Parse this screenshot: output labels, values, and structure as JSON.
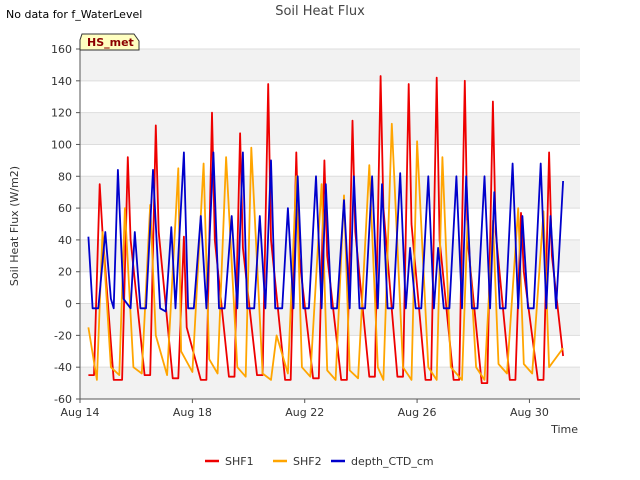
{
  "header": {
    "no_data_note": "No data for f_WaterLevel"
  },
  "site_badge": {
    "label": "HS_met",
    "bg": "#ffffc0",
    "text_color": "#8b0000"
  },
  "chart_data": {
    "type": "line",
    "title": "Soil Heat Flux",
    "xlabel": "Time",
    "ylabel": "Soil Heat Flux (W/m2)",
    "xlim": [
      14,
      31.8
    ],
    "ylim": [
      -60,
      160
    ],
    "yticks": [
      -60,
      -40,
      -20,
      0,
      20,
      40,
      60,
      80,
      100,
      120,
      140,
      160
    ],
    "xticks": [
      {
        "day": 14,
        "label": "Aug 14"
      },
      {
        "day": 18,
        "label": "Aug 18"
      },
      {
        "day": 22,
        "label": "Aug 22"
      },
      {
        "day": 26,
        "label": "Aug 26"
      },
      {
        "day": 30,
        "label": "Aug 30"
      }
    ],
    "legend_position": "bottom-center",
    "series": [
      {
        "name": "SHF1",
        "color": "#ee0000",
        "x": [
          14.3,
          14.5,
          14.7,
          14.8,
          15.2,
          15.5,
          15.7,
          15.8,
          16.3,
          16.5,
          16.7,
          16.8,
          17.3,
          17.5,
          17.7,
          17.8,
          18.3,
          18.5,
          18.7,
          18.8,
          19.3,
          19.5,
          19.7,
          19.8,
          20.3,
          20.5,
          20.7,
          20.8,
          21.3,
          21.5,
          21.7,
          21.8,
          22.3,
          22.5,
          22.7,
          22.8,
          23.3,
          23.5,
          23.7,
          23.8,
          24.3,
          24.5,
          24.7,
          24.8,
          25.3,
          25.5,
          25.7,
          25.8,
          26.3,
          26.5,
          26.7,
          26.8,
          27.3,
          27.5,
          27.7,
          27.8,
          28.3,
          28.5,
          28.7,
          28.8,
          29.3,
          29.5,
          29.7,
          29.8,
          30.3,
          30.5,
          30.7,
          30.8,
          31.2
        ],
        "values": [
          -45,
          -45,
          75,
          45,
          -48,
          -48,
          92,
          40,
          -45,
          -45,
          112,
          45,
          -47,
          -47,
          42,
          -15,
          -48,
          -48,
          120,
          40,
          -46,
          -46,
          107,
          35,
          -45,
          -45,
          138,
          40,
          -48,
          -48,
          95,
          30,
          -47,
          -47,
          90,
          30,
          -48,
          -48,
          115,
          45,
          -46,
          -46,
          143,
          60,
          -46,
          -46,
          138,
          50,
          -48,
          -48,
          142,
          40,
          -48,
          -48,
          140,
          40,
          -50,
          -50,
          127,
          45,
          -48,
          -48,
          57,
          20,
          -48,
          -48,
          95,
          30,
          -33
        ]
      },
      {
        "name": "SHF2",
        "color": "#ffa500",
        "x": [
          14.3,
          14.6,
          14.8,
          15.1,
          15.4,
          15.6,
          15.9,
          16.2,
          16.5,
          16.7,
          17.1,
          17.5,
          17.6,
          18.0,
          18.4,
          18.6,
          18.9,
          19.2,
          19.6,
          19.9,
          20.1,
          20.5,
          20.8,
          21.0,
          21.4,
          21.7,
          21.9,
          22.2,
          22.6,
          22.8,
          23.1,
          23.4,
          23.6,
          23.9,
          24.3,
          24.6,
          24.8,
          25.1,
          25.5,
          25.8,
          26.0,
          26.4,
          26.7,
          26.9,
          27.2,
          27.6,
          27.8,
          28.1,
          28.4,
          28.7,
          28.9,
          29.2,
          29.6,
          29.8,
          30.1,
          30.5,
          30.7,
          31.2
        ],
        "values": [
          -15,
          -48,
          45,
          -40,
          -45,
          60,
          -40,
          -44,
          62,
          -20,
          -45,
          85,
          -30,
          -43,
          88,
          -35,
          -44,
          92,
          -40,
          -46,
          98,
          -44,
          -48,
          -20,
          -44,
          80,
          -40,
          -46,
          75,
          -42,
          -48,
          68,
          -42,
          -47,
          87,
          -40,
          -48,
          113,
          -40,
          -48,
          102,
          -40,
          -48,
          92,
          -40,
          -48,
          52,
          -40,
          -48,
          52,
          -38,
          -44,
          60,
          -38,
          -44,
          58,
          -40,
          -28
        ]
      },
      {
        "name": "depth_CTD_cm",
        "color": "#0000cc",
        "x": [
          14.3,
          14.45,
          14.65,
          14.9,
          15.1,
          15.2,
          15.35,
          15.55,
          15.8,
          15.95,
          16.15,
          16.35,
          16.6,
          16.85,
          17.05,
          17.25,
          17.4,
          17.7,
          17.85,
          18.05,
          18.3,
          18.5,
          18.75,
          18.95,
          19.15,
          19.4,
          19.6,
          19.8,
          19.95,
          20.2,
          20.4,
          20.6,
          20.8,
          20.95,
          21.2,
          21.4,
          21.6,
          21.75,
          21.95,
          22.15,
          22.4,
          22.6,
          22.75,
          22.95,
          23.15,
          23.4,
          23.6,
          23.75,
          23.95,
          24.15,
          24.4,
          24.6,
          24.75,
          24.95,
          25.15,
          25.4,
          25.6,
          25.75,
          25.95,
          26.15,
          26.4,
          26.6,
          26.75,
          26.95,
          27.15,
          27.4,
          27.6,
          27.75,
          27.95,
          28.15,
          28.4,
          28.6,
          28.75,
          28.95,
          29.15,
          29.4,
          29.6,
          29.75,
          29.95,
          30.15,
          30.4,
          30.6,
          30.75,
          30.95,
          31.2
        ],
        "values": [
          42,
          -3,
          -3,
          45,
          3,
          -3,
          84,
          3,
          -3,
          45,
          -3,
          -3,
          84,
          -3,
          -5,
          48,
          -3,
          95,
          -3,
          -3,
          55,
          -3,
          95,
          -3,
          -3,
          55,
          -3,
          95,
          -3,
          -3,
          55,
          -3,
          90,
          -3,
          -3,
          60,
          -3,
          80,
          -3,
          -3,
          80,
          -3,
          75,
          -3,
          -3,
          65,
          -3,
          80,
          -3,
          -3,
          80,
          -3,
          75,
          -3,
          -3,
          82,
          -3,
          35,
          -3,
          -3,
          80,
          -3,
          35,
          -3,
          -3,
          80,
          -3,
          80,
          -3,
          -3,
          80,
          -3,
          70,
          -3,
          -3,
          88,
          -3,
          55,
          -3,
          -3,
          88,
          -3,
          55,
          -3,
          77
        ]
      }
    ]
  }
}
